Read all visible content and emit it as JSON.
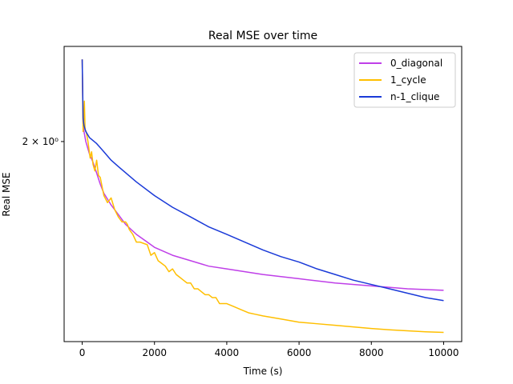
{
  "chart_data": {
    "type": "line",
    "title": "Real MSE over time",
    "xlabel": "Time (s)",
    "ylabel": "Real MSE",
    "x_scale": "linear",
    "y_scale": "log",
    "xlim": [
      -500,
      10500
    ],
    "ylim": [
      1.22,
      2.53
    ],
    "x_ticks": [
      0,
      2000,
      4000,
      6000,
      8000,
      10000
    ],
    "x_tick_labels": [
      "0",
      "2000",
      "4000",
      "6000",
      "8000",
      "10000"
    ],
    "y_ticks": [
      2.0
    ],
    "y_tick_labels": [
      "2 × 10⁰"
    ],
    "grid": false,
    "legend_position": "top-right",
    "series": [
      {
        "name": "0_diagonal",
        "color": "#bf3fe8",
        "x": [
          0,
          25,
          50,
          100,
          200,
          300,
          400,
          500,
          600,
          800,
          1000,
          1200,
          1500,
          1800,
          2000,
          2500,
          3000,
          3500,
          4000,
          5000,
          6000,
          7000,
          8000,
          9000,
          10000
        ],
        "y": [
          2.45,
          2.09,
          2.05,
          2.0,
          1.94,
          1.9,
          1.85,
          1.8,
          1.76,
          1.71,
          1.67,
          1.63,
          1.59,
          1.56,
          1.54,
          1.51,
          1.49,
          1.47,
          1.46,
          1.44,
          1.425,
          1.41,
          1.4,
          1.39,
          1.385
        ]
      },
      {
        "name": "1_cycle",
        "color": "#ffbf00",
        "x": [
          0,
          25,
          60,
          80,
          110,
          160,
          220,
          260,
          300,
          350,
          400,
          450,
          500,
          600,
          700,
          800,
          900,
          1000,
          1100,
          1200,
          1250,
          1300,
          1400,
          1500,
          1600,
          1800,
          1900,
          2000,
          2100,
          2200,
          2300,
          2400,
          2500,
          2600,
          2700,
          2800,
          2900,
          3000,
          3100,
          3200,
          3300,
          3400,
          3500,
          3600,
          3700,
          3800,
          4000,
          4200,
          4400,
          4600,
          4800,
          5000,
          5500,
          6000,
          6500,
          7000,
          7500,
          8000,
          8500,
          9000,
          9500,
          10000
        ],
        "y": [
          2.45,
          2.05,
          2.21,
          2.06,
          2.05,
          2.0,
          1.92,
          1.95,
          1.89,
          1.86,
          1.91,
          1.84,
          1.83,
          1.75,
          1.72,
          1.74,
          1.69,
          1.66,
          1.64,
          1.64,
          1.63,
          1.61,
          1.59,
          1.56,
          1.56,
          1.55,
          1.51,
          1.52,
          1.49,
          1.48,
          1.47,
          1.45,
          1.46,
          1.44,
          1.43,
          1.42,
          1.41,
          1.41,
          1.39,
          1.39,
          1.38,
          1.37,
          1.37,
          1.36,
          1.36,
          1.34,
          1.34,
          1.33,
          1.32,
          1.31,
          1.305,
          1.3,
          1.29,
          1.28,
          1.275,
          1.27,
          1.265,
          1.26,
          1.256,
          1.253,
          1.25,
          1.248
        ]
      },
      {
        "name": "n-1_clique",
        "color": "#1a3ad8",
        "x": [
          0,
          25,
          50,
          100,
          200,
          400,
          600,
          800,
          1000,
          1500,
          2000,
          2500,
          3000,
          3500,
          4000,
          4500,
          5000,
          5500,
          6000,
          6500,
          7000,
          7500,
          8000,
          8500,
          9000,
          9500,
          10000
        ],
        "y": [
          2.45,
          2.12,
          2.08,
          2.05,
          2.02,
          1.99,
          1.95,
          1.91,
          1.88,
          1.81,
          1.75,
          1.7,
          1.66,
          1.62,
          1.59,
          1.56,
          1.53,
          1.505,
          1.485,
          1.46,
          1.44,
          1.42,
          1.405,
          1.39,
          1.375,
          1.36,
          1.35
        ]
      }
    ]
  }
}
